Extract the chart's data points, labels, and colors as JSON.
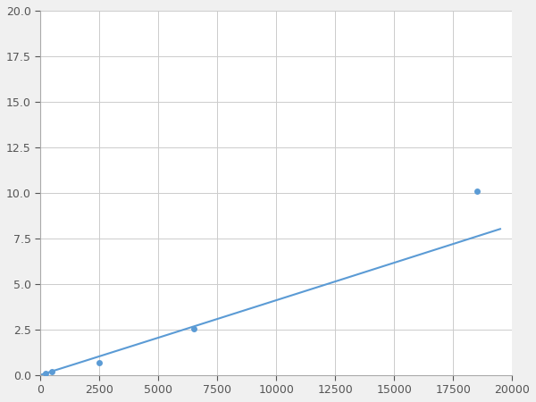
{
  "x": [
    200,
    500,
    2500,
    6500,
    18500
  ],
  "y": [
    0.1,
    0.2,
    0.65,
    2.55,
    10.1
  ],
  "line_color": "#5b9bd5",
  "marker_color": "#5b9bd5",
  "marker_size": 5,
  "line_width": 1.5,
  "xlim": [
    0,
    20000
  ],
  "ylim": [
    0,
    20
  ],
  "xticks": [
    0,
    2500,
    5000,
    7500,
    10000,
    12500,
    15000,
    17500,
    20000
  ],
  "yticks": [
    0.0,
    2.5,
    5.0,
    7.5,
    10.0,
    12.5,
    15.0,
    17.5,
    20.0
  ],
  "xlabel_labels": [
    "0",
    "2500",
    "5000",
    "7500",
    "10000",
    "12500",
    "15000",
    "17500",
    "20000"
  ],
  "ylabel_labels": [
    "0.0",
    "2.5",
    "5.0",
    "7.5",
    "10.0",
    "12.5",
    "15.0",
    "17.5",
    "20.0"
  ],
  "grid_color": "#cccccc",
  "background_color": "#f0f0f0",
  "axes_background": "#ffffff",
  "tick_fontsize": 9,
  "figsize": [
    6.0,
    4.5
  ],
  "dpi": 100
}
